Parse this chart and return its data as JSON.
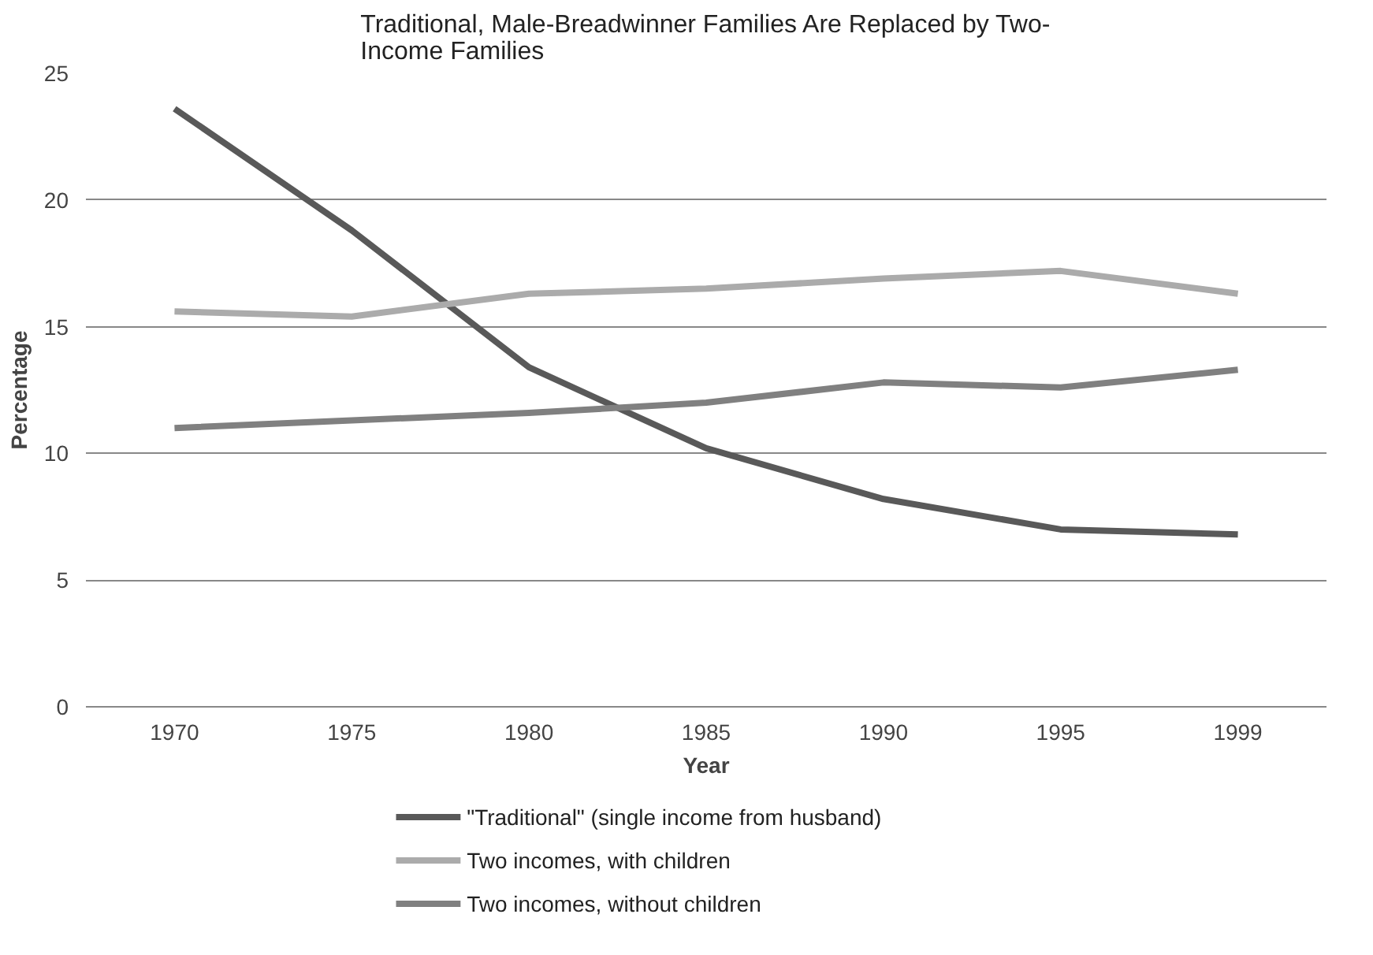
{
  "chart_data": {
    "type": "line",
    "title": "Traditional, Male-Breadwinner Families Are Replaced by Two-Income Families",
    "xlabel": "Year",
    "ylabel": "Percentage",
    "categories": [
      "1970",
      "1975",
      "1980",
      "1985",
      "1990",
      "1995",
      "1999"
    ],
    "series": [
      {
        "name": "\"Traditional\" (single income from husband)",
        "color": "#595959",
        "values": [
          23.6,
          18.8,
          13.4,
          10.2,
          8.2,
          7.0,
          6.8
        ]
      },
      {
        "name": "Two incomes, with children",
        "color": "#ababab",
        "values": [
          15.6,
          15.4,
          16.3,
          16.5,
          16.9,
          17.2,
          16.3
        ]
      },
      {
        "name": "Two incomes, without children",
        "color": "#808080",
        "values": [
          11.0,
          11.3,
          11.6,
          12.0,
          12.8,
          12.6,
          13.3
        ]
      }
    ],
    "ylim": [
      0,
      25
    ],
    "yticks": [
      0,
      5,
      10,
      15,
      20,
      25
    ],
    "grid": "y",
    "legend": "bottom",
    "marker": "none",
    "line_style": "solid"
  }
}
